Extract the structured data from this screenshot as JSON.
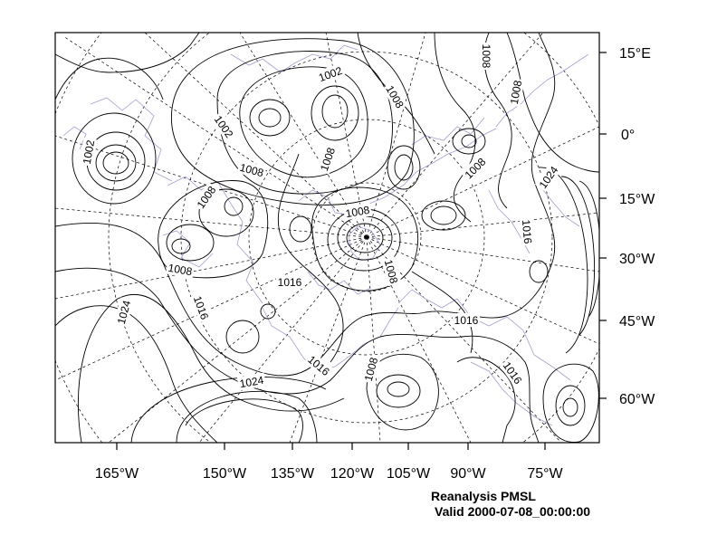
{
  "caption": {
    "line1": "Reanalysis PMSL",
    "line2": "Valid 2000-07-08_00:00:00"
  },
  "right_axis_labels": [
    "15°E",
    "0°",
    "15°W",
    "30°W",
    "45°W",
    "60°W"
  ],
  "bottom_axis_labels": [
    "165°W",
    "150°W",
    "135°W",
    "120°W",
    "105°W",
    "90°W",
    "75°W"
  ],
  "contour_labels": [
    "1002",
    "1008",
    "1008",
    "1008",
    "1002",
    "1002",
    "1008",
    "1008",
    "1008",
    "1008",
    "1008",
    "1008",
    "1024",
    "1016",
    "1008",
    "1016",
    "1016",
    "1024",
    "1016",
    "1016",
    "1024",
    "1016",
    "1008",
    "1016"
  ],
  "colors": {
    "contour": "#000000",
    "coastline": "#a99bcf",
    "graticule": "#000000"
  }
}
